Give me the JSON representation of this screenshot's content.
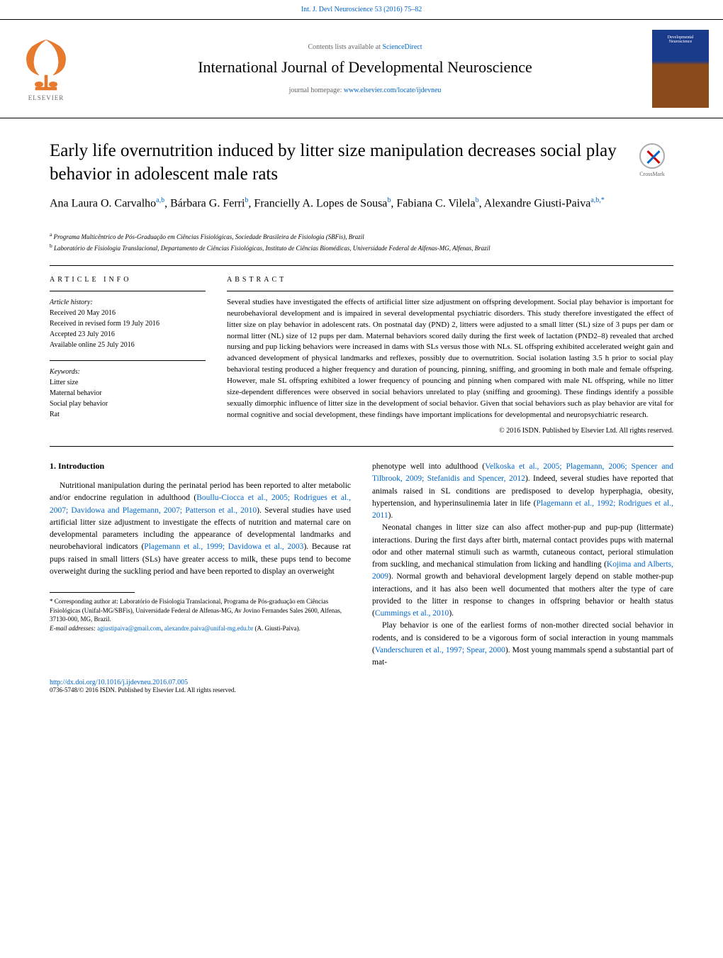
{
  "header": {
    "citation": "Int. J. Devl Neuroscience 53 (2016) 75–82",
    "contents_prefix": "Contents lists available at ",
    "contents_link": "ScienceDirect",
    "journal_name": "International Journal of Developmental Neuroscience",
    "homepage_prefix": "journal homepage: ",
    "homepage_link": "www.elsevier.com/locate/ijdevneu",
    "elsevier_label": "ELSEVIER",
    "cover_top": "Developmental",
    "cover_bottom": "Neuroscience",
    "crossmark_label": "CrossMark"
  },
  "article": {
    "title": "Early life overnutrition induced by litter size manipulation decreases social play behavior in adolescent male rats",
    "authors_html": "Ana Laura O. Carvalho|a,b|, Bárbara G. Ferri|b|, Francielly A. Lopes de Sousa|b|, Fabiana C. Vilela|b|, Alexandre Giusti-Paiva|a,b,*|",
    "affiliations": [
      {
        "sup": "a",
        "text": "Programa Multicêntrico de Pós-Graduação em Ciências Fisiológicas, Sociedade Brasileira de Fisiologia (SBFis), Brazil"
      },
      {
        "sup": "b",
        "text": "Laboratório de Fisiologia Translacional, Departamento de Ciências Fisiológicas, Instituto de Ciências Biomédicas, Universidade Federal de Alfenas-MG, Alfenas, Brazil"
      }
    ]
  },
  "info": {
    "section_title": "ARTICLE INFO",
    "history_label": "Article history:",
    "history": [
      "Received 20 May 2016",
      "Received in revised form 19 July 2016",
      "Accepted 23 July 2016",
      "Available online 25 July 2016"
    ],
    "keywords_label": "Keywords:",
    "keywords": [
      "Litter size",
      "Maternal behavior",
      "Social play behavior",
      "Rat"
    ]
  },
  "abstract": {
    "section_title": "ABSTRACT",
    "text": "Several studies have investigated the effects of artificial litter size adjustment on offspring development. Social play behavior is important for neurobehavioral development and is impaired in several developmental psychiatric disorders. This study therefore investigated the effect of litter size on play behavior in adolescent rats. On postnatal day (PND) 2, litters were adjusted to a small litter (SL) size of 3 pups per dam or normal litter (NL) size of 12 pups per dam. Maternal behaviors scored daily during the first week of lactation (PND2–8) revealed that arched nursing and pup licking behaviors were increased in dams with SLs versus those with NLs. SL offspring exhibited accelerated weight gain and advanced development of physical landmarks and reflexes, possibly due to overnutrition. Social isolation lasting 3.5 h prior to social play behavioral testing produced a higher frequency and duration of pouncing, pinning, sniffing, and grooming in both male and female offspring. However, male SL offspring exhibited a lower frequency of pouncing and pinning when compared with male NL offspring, while no litter size-dependent differences were observed in social behaviors unrelated to play (sniffing and grooming). These findings identify a possible sexually dimorphic influence of litter size in the development of social behavior. Given that social behaviors such as play behavior are vital for normal cognitive and social development, these findings have important implications for developmental and neuropsychiatric research.",
    "copyright": "© 2016 ISDN. Published by Elsevier Ltd. All rights reserved."
  },
  "body": {
    "intro_heading": "1. Introduction",
    "left_paragraphs": [
      "Nutritional manipulation during the perinatal period has been reported to alter metabolic and/or endocrine regulation in adulthood (<a class='ref'>Boullu-Ciocca et al., 2005; Rodrigues et al., 2007; Davidowa and Plagemann, 2007; Patterson et al., 2010</a>). Several studies have used artificial litter size adjustment to investigate the effects of nutrition and maternal care on developmental parameters including the appearance of developmental landmarks and neurobehavioral indicators (<a class='ref'>Plagemann et al., 1999; Davidowa et al., 2003</a>). Because rat pups raised in small litters (SLs) have greater access to milk, these pups tend to become overweight during the suckling period and have been reported to display an overweight"
    ],
    "right_paragraphs": [
      "phenotype well into adulthood (<a class='ref'>Velkoska et al., 2005; Plagemann, 2006; Spencer and Tilbrook, 2009; Stefanidis and Spencer, 2012</a>). Indeed, several studies have reported that animals raised in SL conditions are predisposed to develop hyperphagia, obesity, hypertension, and hyperinsulinemia later in life (<a class='ref'>Plagemann et al., 1992; Rodrigues et al., 2011</a>).",
      "Neonatal changes in litter size can also affect mother-pup and pup-pup (littermate) interactions. During the first days after birth, maternal contact provides pups with maternal odor and other maternal stimuli such as warmth, cutaneous contact, perioral stimulation from suckling, and mechanical stimulation from licking and handling (<a class='ref'>Kojima and Alberts, 2009</a>). Normal growth and behavioral development largely depend on stable mother-pup interactions, and it has also been well documented that mothers alter the type of care provided to the litter in response to changes in offspring behavior or health status (<a class='ref'>Cummings et al., 2010</a>).",
      "Play behavior is one of the earliest forms of non-mother directed social behavior in rodents, and is considered to be a vigorous form of social interaction in young mammals (<a class='ref'>Vanderschuren et al., 1997; Spear, 2000</a>). Most young mammals spend a substantial part of mat-"
    ]
  },
  "footnote": {
    "corresponding": "* Corresponding author at: Laboratório de Fisiologia Translacional, Programa de Pós-graduação em Ciências Fisiológicas (Unifal-MG/SBFis), Universidade Federal de Alfenas-MG, Av Jovino Fernandes Sales 2600, Alfenas, 37130-000, MG, Brazil.",
    "email_label": "E-mail addresses:",
    "email1": "agiustipaiva@gmail.com",
    "email2": "alexandre.paiva@unifal-mg.edu.br",
    "email_attrib": "(A. Giusti-Paiva)."
  },
  "footer": {
    "doi": "http://dx.doi.org/10.1016/j.ijdevneu.2016.07.005",
    "copyright": "0736-5748/© 2016 ISDN. Published by Elsevier Ltd. All rights reserved."
  },
  "colors": {
    "link": "#0066cc",
    "text": "#000000",
    "muted": "#666666",
    "cover_top": "#1a3a8a",
    "cover_bottom": "#8a4a1a"
  },
  "typography": {
    "title_fontsize": 25,
    "author_fontsize": 16,
    "journal_fontsize": 22,
    "abstract_fontsize": 11,
    "body_fontsize": 11.5,
    "footnote_fontsize": 9
  }
}
